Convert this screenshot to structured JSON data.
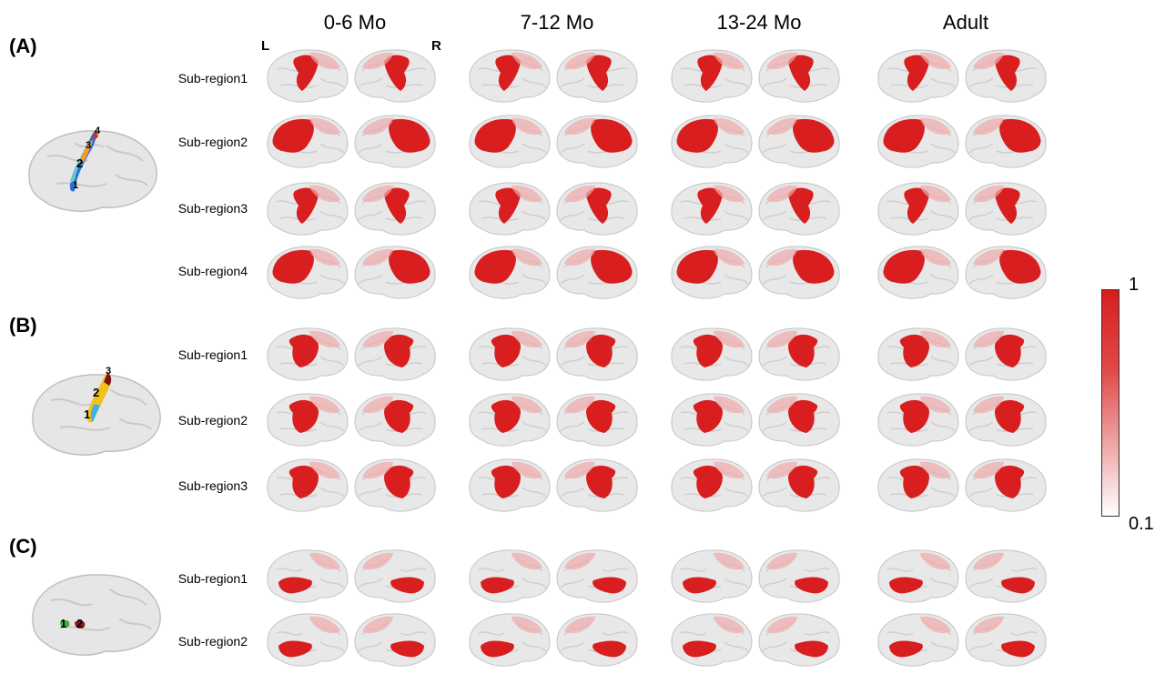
{
  "columns": [
    "0-6 Mo",
    "7-12 Mo",
    "13-24 Mo",
    "Adult"
  ],
  "hemisphere_labels": {
    "left": "L",
    "right": "R"
  },
  "panels": [
    {
      "label": "(A)",
      "subregions": [
        "Sub-region1",
        "Sub-region2",
        "Sub-region3",
        "Sub-region4"
      ],
      "thumb_numbers": [
        "1",
        "2",
        "3",
        "4"
      ]
    },
    {
      "label": "(B)",
      "subregions": [
        "Sub-region1",
        "Sub-region2",
        "Sub-region3"
      ],
      "thumb_numbers": [
        "1",
        "2",
        "3"
      ]
    },
    {
      "label": "(C)",
      "subregions": [
        "Sub-region1",
        "Sub-region2"
      ],
      "thumb_numbers": [
        "1",
        "2"
      ]
    }
  ],
  "colorbar": {
    "max": "1",
    "min": "0.1",
    "high_color": "#d81e1e",
    "low_color": "#ffffff"
  },
  "colors": {
    "cortex": "#e8e8e8",
    "activation": "#d81e1e",
    "faint": "#f0aaaa"
  }
}
